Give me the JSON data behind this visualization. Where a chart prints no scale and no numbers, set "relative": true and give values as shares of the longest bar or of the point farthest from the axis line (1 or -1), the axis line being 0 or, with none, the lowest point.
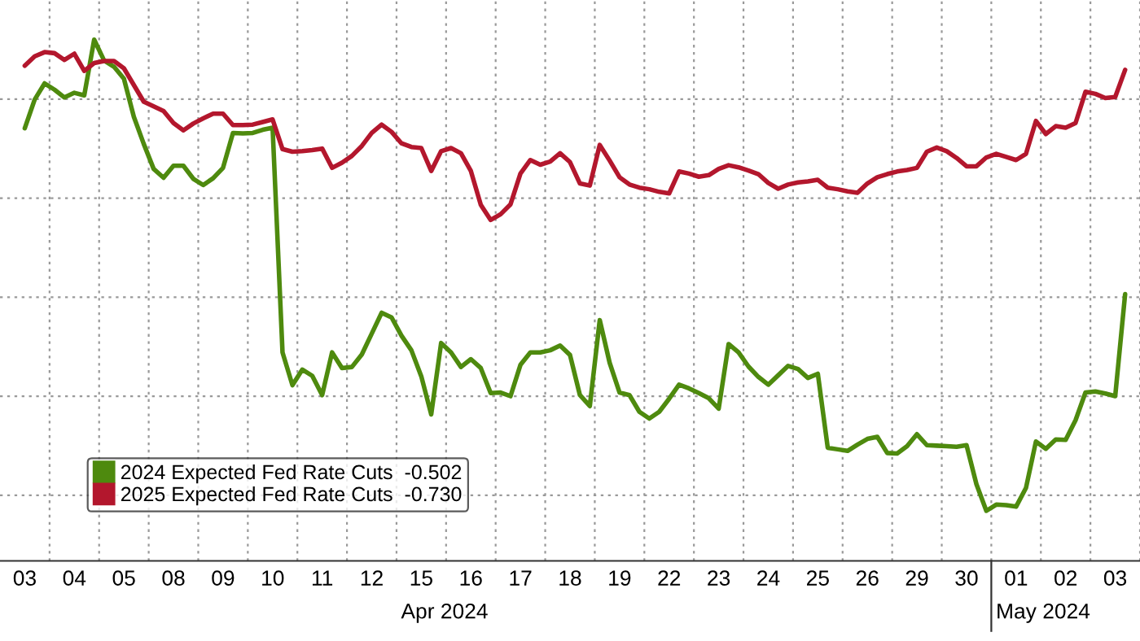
{
  "chart_data": {
    "type": "line",
    "relative": true,
    "grid": true,
    "legend": "bottom left",
    "categories": [
      null,
      null,
      "03",
      null,
      null,
      null,
      null,
      "04",
      null,
      null,
      null,
      null,
      "05",
      null,
      null,
      null,
      null,
      "08",
      null,
      null,
      null,
      null,
      "09",
      null,
      null,
      null,
      null,
      "10",
      null,
      null,
      null,
      null,
      "11",
      null,
      null,
      null,
      null,
      "12",
      null,
      null,
      null,
      null,
      "15",
      null,
      null,
      null,
      null,
      "16",
      null,
      null,
      null,
      null,
      "17",
      null,
      null,
      null,
      null,
      "18",
      null,
      null,
      null,
      null,
      "19",
      null,
      null,
      null,
      null,
      "22",
      null,
      null,
      null,
      null,
      "23",
      null,
      null,
      null,
      null,
      "24",
      null,
      null,
      null,
      null,
      "25",
      null,
      null,
      null,
      null,
      "26",
      null,
      null,
      null,
      null,
      "29",
      null,
      null,
      null,
      null,
      "30",
      null,
      null,
      null,
      null,
      "01",
      null,
      null,
      null,
      null,
      "02",
      null,
      null,
      null,
      null,
      "03",
      null,
      null
    ],
    "annotations": [
      "Apr 2024",
      "May 2024"
    ],
    "series": [
      {
        "name": "2024 Expected Fed Rate Cuts  -0.502",
        "color": "#4e8a0e",
        "values": [
          null,
          null,
          0.83,
          0.885,
          0.916,
          0.904,
          0.889,
          0.898,
          0.893,
          1.0,
          0.96,
          0.948,
          0.925,
          0.852,
          0.8,
          0.752,
          0.735,
          0.758,
          0.758,
          0.733,
          0.721,
          0.734,
          0.754,
          0.821,
          0.82,
          0.821,
          0.827,
          0.831,
          0.4,
          0.337,
          0.367,
          0.355,
          0.318,
          0.4,
          0.37,
          0.372,
          0.396,
          0.436,
          0.476,
          0.467,
          0.432,
          0.404,
          0.354,
          0.281,
          0.418,
          0.4,
          0.372,
          0.387,
          0.37,
          0.322,
          0.323,
          0.316,
          0.376,
          0.4,
          0.4,
          0.404,
          0.413,
          0.395,
          0.318,
          0.297,
          0.462,
          0.38,
          0.323,
          0.318,
          0.286,
          0.273,
          0.286,
          0.311,
          0.338,
          0.331,
          0.322,
          0.312,
          0.292,
          0.416,
          0.4,
          0.373,
          0.353,
          0.338,
          0.356,
          0.374,
          0.368,
          0.351,
          0.359,
          0.217,
          0.214,
          0.211,
          0.223,
          0.234,
          0.238,
          0.207,
          0.206,
          0.22,
          0.243,
          0.222,
          0.221,
          0.22,
          0.219,
          0.222,
          0.147,
          0.096,
          0.108,
          0.107,
          0.104,
          0.14,
          0.229,
          0.215,
          0.233,
          0.232,
          0.27,
          0.323,
          0.325,
          0.321,
          0.316,
          0.512,
          null
        ]
      },
      {
        "name": "2025 Expected Fed Rate Cuts  -0.730",
        "color": "#b3172d",
        "values": [
          null,
          null,
          0.95,
          0.968,
          0.976,
          0.974,
          0.961,
          0.973,
          0.94,
          0.955,
          0.959,
          0.959,
          0.945,
          0.913,
          0.881,
          0.872,
          0.863,
          0.84,
          0.826,
          0.839,
          0.849,
          0.858,
          0.858,
          0.836,
          0.836,
          0.837,
          0.842,
          0.847,
          0.79,
          0.785,
          0.786,
          0.788,
          0.791,
          0.754,
          0.764,
          0.777,
          0.796,
          0.821,
          0.837,
          0.823,
          0.801,
          0.794,
          0.792,
          0.748,
          0.786,
          0.792,
          0.782,
          0.748,
          0.683,
          0.654,
          0.665,
          0.684,
          0.743,
          0.769,
          0.76,
          0.766,
          0.782,
          0.765,
          0.724,
          0.72,
          0.798,
          0.768,
          0.736,
          0.722,
          0.716,
          0.713,
          0.708,
          0.705,
          0.747,
          0.743,
          0.737,
          0.74,
          0.752,
          0.759,
          0.755,
          0.749,
          0.742,
          0.725,
          0.714,
          0.722,
          0.726,
          0.728,
          0.731,
          0.716,
          0.713,
          0.709,
          0.706,
          0.724,
          0.736,
          0.742,
          0.747,
          0.75,
          0.754,
          0.785,
          0.793,
          0.786,
          0.773,
          0.757,
          0.757,
          0.774,
          0.781,
          0.775,
          0.769,
          0.781,
          0.844,
          0.819,
          0.834,
          0.831,
          0.84,
          0.9,
          0.896,
          0.888,
          0.89,
          0.942,
          null
        ]
      }
    ]
  }
}
